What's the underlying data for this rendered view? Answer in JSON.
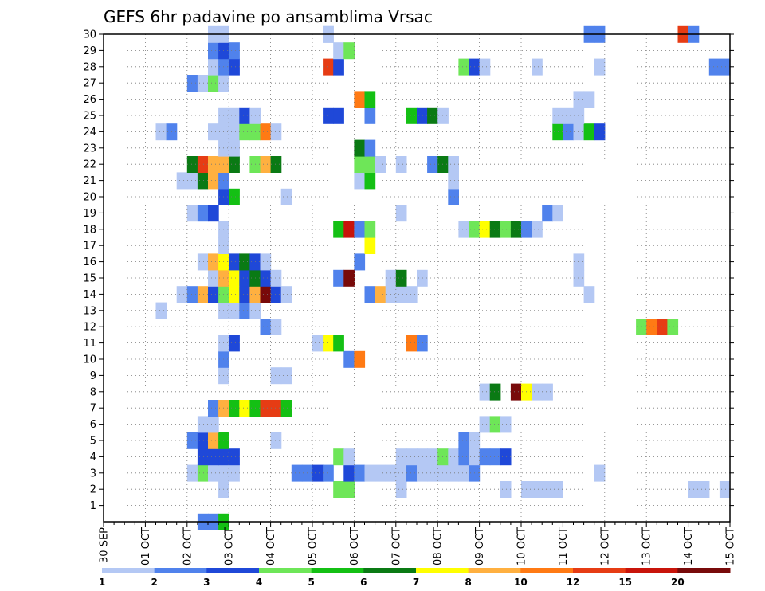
{
  "chart_data": {
    "type": "heatmap",
    "title": "GEFS 6hr padavine po ansamblima Vrsac",
    "xlabel": "",
    "ylabel": "",
    "x_tick_labels": [
      "30 SEP",
      "01 OCT",
      "02 OCT",
      "03 OCT",
      "04 OCT",
      "05 OCT",
      "06 OCT",
      "07 OCT",
      "08 OCT",
      "09 OCT",
      "10 OCT",
      "11 OCT",
      "12 OCT",
      "13 OCT",
      "14 OCT",
      "15 OCT"
    ],
    "xlim_days": [
      0,
      15
    ],
    "y_tick_labels": [
      "1",
      "2",
      "3",
      "4",
      "5",
      "6",
      "7",
      "8",
      "9",
      "10",
      "11",
      "12",
      "13",
      "14",
      "15",
      "16",
      "17",
      "18",
      "19",
      "20",
      "21",
      "22",
      "23",
      "24",
      "25",
      "26",
      "27",
      "28",
      "29",
      "30"
    ],
    "ylim": [
      0,
      30
    ],
    "grid": true,
    "legend_position": "bottom",
    "legend_ticks": [
      "1",
      "2",
      "3",
      "4",
      "5",
      "6",
      "7",
      "8",
      "10",
      "12",
      "15",
      "20"
    ],
    "colorbar": [
      {
        "lower": 1,
        "color": "#b4c8f4"
      },
      {
        "lower": 2,
        "color": "#5082ec"
      },
      {
        "lower": 3,
        "color": "#1f48d8"
      },
      {
        "lower": 4,
        "color": "#6ee658"
      },
      {
        "lower": 5,
        "color": "#14c014"
      },
      {
        "lower": 6,
        "color": "#0a7a14"
      },
      {
        "lower": 7,
        "color": "#ffff00"
      },
      {
        "lower": 8,
        "color": "#ffb040"
      },
      {
        "lower": 10,
        "color": "#ff7a14"
      },
      {
        "lower": 12,
        "color": "#e63c14"
      },
      {
        "lower": 15,
        "color": "#c8140a"
      },
      {
        "lower": 20,
        "color": "#780a0a"
      }
    ],
    "series": [
      {
        "member": 0,
        "values": [
          [
            9,
            2
          ],
          [
            10,
            2
          ],
          [
            11,
            5
          ]
        ]
      },
      {
        "member": 2,
        "values": [
          [
            11,
            1
          ],
          [
            22,
            4
          ],
          [
            23,
            4
          ],
          [
            28,
            1
          ],
          [
            38,
            1
          ],
          [
            40,
            1
          ],
          [
            41,
            1
          ],
          [
            42,
            1
          ],
          [
            43,
            1
          ],
          [
            56,
            1
          ],
          [
            57,
            1
          ],
          [
            59,
            1
          ],
          [
            76,
            1
          ],
          [
            77,
            1
          ],
          [
            78,
            1
          ],
          [
            79,
            1
          ],
          [
            94,
            1
          ],
          [
            97,
            1
          ]
        ]
      },
      {
        "member": 3,
        "values": [
          [
            8,
            1
          ],
          [
            9,
            4
          ],
          [
            10,
            1
          ],
          [
            11,
            1
          ],
          [
            12,
            1
          ],
          [
            18,
            2
          ],
          [
            19,
            2
          ],
          [
            20,
            3
          ],
          [
            21,
            2
          ],
          [
            23,
            3
          ],
          [
            24,
            2
          ],
          [
            25,
            1
          ],
          [
            26,
            1
          ],
          [
            27,
            1
          ],
          [
            28,
            1
          ],
          [
            29,
            2
          ],
          [
            30,
            1
          ],
          [
            31,
            1
          ],
          [
            32,
            1
          ],
          [
            33,
            1
          ],
          [
            34,
            1
          ],
          [
            35,
            2
          ],
          [
            47,
            1
          ]
        ]
      },
      {
        "member": 4,
        "values": [
          [
            9,
            3
          ],
          [
            10,
            3
          ],
          [
            11,
            3
          ],
          [
            12,
            3
          ],
          [
            22,
            4
          ],
          [
            23,
            1
          ],
          [
            28,
            1
          ],
          [
            29,
            1
          ],
          [
            30,
            1
          ],
          [
            31,
            1
          ],
          [
            32,
            4
          ],
          [
            33,
            1
          ],
          [
            34,
            2
          ],
          [
            35,
            1
          ],
          [
            36,
            2
          ],
          [
            37,
            2
          ],
          [
            38,
            3
          ]
        ]
      },
      {
        "member": 5,
        "values": [
          [
            8,
            2
          ],
          [
            9,
            3
          ],
          [
            10,
            8
          ],
          [
            11,
            5
          ],
          [
            16,
            1
          ],
          [
            34,
            2
          ],
          [
            35,
            1
          ]
        ]
      },
      {
        "member": 6,
        "values": [
          [
            9,
            1
          ],
          [
            10,
            1
          ],
          [
            36,
            1
          ],
          [
            37,
            4
          ],
          [
            38,
            1
          ]
        ]
      },
      {
        "member": 7,
        "values": [
          [
            10,
            2
          ],
          [
            11,
            8
          ],
          [
            12,
            5
          ],
          [
            13,
            7
          ],
          [
            14,
            5
          ],
          [
            15,
            12
          ],
          [
            16,
            12
          ],
          [
            17,
            5
          ]
        ]
      },
      {
        "member": 8,
        "values": [
          [
            36,
            1
          ],
          [
            37,
            6
          ],
          [
            39,
            20
          ],
          [
            40,
            7
          ],
          [
            41,
            1
          ],
          [
            42,
            1
          ]
        ]
      },
      {
        "member": 9,
        "values": [
          [
            11,
            1
          ],
          [
            16,
            1
          ],
          [
            17,
            1
          ]
        ]
      },
      {
        "member": 10,
        "values": [
          [
            11,
            2
          ],
          [
            23,
            2
          ],
          [
            24,
            10
          ]
        ]
      },
      {
        "member": 11,
        "values": [
          [
            11,
            1
          ],
          [
            12,
            3
          ],
          [
            20,
            1
          ],
          [
            21,
            7
          ],
          [
            22,
            5
          ],
          [
            29,
            10
          ],
          [
            30,
            2
          ]
        ]
      },
      {
        "member": 12,
        "values": [
          [
            15,
            2
          ],
          [
            16,
            1
          ],
          [
            51,
            4
          ],
          [
            52,
            10
          ],
          [
            53,
            12
          ],
          [
            54,
            4
          ]
        ]
      },
      {
        "member": 13,
        "values": [
          [
            5,
            1
          ],
          [
            11,
            1
          ],
          [
            12,
            1
          ],
          [
            13,
            2
          ],
          [
            14,
            1
          ]
        ]
      },
      {
        "member": 14,
        "values": [
          [
            7,
            1
          ],
          [
            8,
            2
          ],
          [
            9,
            8
          ],
          [
            10,
            3
          ],
          [
            11,
            4
          ],
          [
            12,
            7
          ],
          [
            13,
            3
          ],
          [
            14,
            8
          ],
          [
            15,
            20
          ],
          [
            16,
            3
          ],
          [
            17,
            1
          ],
          [
            25,
            2
          ],
          [
            26,
            8
          ],
          [
            27,
            1
          ],
          [
            28,
            1
          ],
          [
            29,
            1
          ],
          [
            46,
            1
          ]
        ]
      },
      {
        "member": 15,
        "values": [
          [
            10,
            1
          ],
          [
            11,
            8
          ],
          [
            12,
            7
          ],
          [
            13,
            3
          ],
          [
            14,
            6
          ],
          [
            15,
            3
          ],
          [
            16,
            1
          ],
          [
            22,
            2
          ],
          [
            23,
            20
          ],
          [
            27,
            1
          ],
          [
            28,
            6
          ],
          [
            30,
            1
          ],
          [
            45,
            1
          ]
        ]
      },
      {
        "member": 16,
        "values": [
          [
            9,
            1
          ],
          [
            10,
            8
          ],
          [
            11,
            7
          ],
          [
            12,
            3
          ],
          [
            13,
            6
          ],
          [
            14,
            3
          ],
          [
            15,
            1
          ],
          [
            24,
            2
          ],
          [
            45,
            1
          ]
        ]
      },
      {
        "member": 17,
        "values": [
          [
            11,
            1
          ],
          [
            25,
            7
          ]
        ]
      },
      {
        "member": 18,
        "values": [
          [
            11,
            1
          ],
          [
            22,
            5
          ],
          [
            23,
            15
          ],
          [
            24,
            2
          ],
          [
            25,
            4
          ],
          [
            34,
            1
          ],
          [
            35,
            4
          ],
          [
            36,
            7
          ],
          [
            37,
            6
          ],
          [
            38,
            4
          ],
          [
            39,
            6
          ],
          [
            40,
            2
          ],
          [
            41,
            1
          ]
        ]
      },
      {
        "member": 19,
        "values": [
          [
            8,
            1
          ],
          [
            9,
            2
          ],
          [
            10,
            3
          ],
          [
            28,
            1
          ],
          [
            42,
            2
          ],
          [
            43,
            1
          ]
        ]
      },
      {
        "member": 20,
        "values": [
          [
            11,
            3
          ],
          [
            12,
            5
          ],
          [
            17,
            1
          ],
          [
            33,
            2
          ]
        ]
      },
      {
        "member": 21,
        "values": [
          [
            7,
            1
          ],
          [
            8,
            1
          ],
          [
            9,
            6
          ],
          [
            10,
            8
          ],
          [
            11,
            2
          ],
          [
            24,
            1
          ],
          [
            25,
            5
          ],
          [
            33,
            1
          ]
        ]
      },
      {
        "member": 22,
        "values": [
          [
            8,
            6
          ],
          [
            9,
            12
          ],
          [
            10,
            8
          ],
          [
            11,
            8
          ],
          [
            12,
            6
          ],
          [
            14,
            4
          ],
          [
            15,
            8
          ],
          [
            16,
            6
          ],
          [
            24,
            4
          ],
          [
            25,
            4
          ],
          [
            26,
            1
          ],
          [
            28,
            1
          ],
          [
            31,
            2
          ],
          [
            32,
            6
          ],
          [
            33,
            1
          ]
        ]
      },
      {
        "member": 23,
        "values": [
          [
            11,
            1
          ],
          [
            12,
            1
          ],
          [
            24,
            6
          ],
          [
            25,
            2
          ]
        ]
      },
      {
        "member": 24,
        "values": [
          [
            5,
            1
          ],
          [
            6,
            2
          ],
          [
            10,
            1
          ],
          [
            11,
            1
          ],
          [
            12,
            1
          ],
          [
            13,
            4
          ],
          [
            14,
            4
          ],
          [
            15,
            10
          ],
          [
            16,
            1
          ],
          [
            43,
            5
          ],
          [
            44,
            2
          ],
          [
            45,
            1
          ],
          [
            46,
            5
          ],
          [
            47,
            3
          ]
        ]
      },
      {
        "member": 25,
        "values": [
          [
            11,
            1
          ],
          [
            12,
            1
          ],
          [
            13,
            3
          ],
          [
            14,
            1
          ],
          [
            21,
            3
          ],
          [
            22,
            3
          ],
          [
            25,
            2
          ],
          [
            29,
            5
          ],
          [
            30,
            3
          ],
          [
            31,
            6
          ],
          [
            32,
            1
          ],
          [
            43,
            1
          ],
          [
            44,
            1
          ],
          [
            45,
            1
          ]
        ]
      },
      {
        "member": 26,
        "values": [
          [
            24,
            10
          ],
          [
            25,
            5
          ],
          [
            45,
            1
          ],
          [
            46,
            1
          ]
        ]
      },
      {
        "member": 27,
        "values": [
          [
            8,
            2
          ],
          [
            9,
            1
          ],
          [
            10,
            4
          ],
          [
            11,
            1
          ]
        ]
      },
      {
        "member": 28,
        "values": [
          [
            10,
            1
          ],
          [
            11,
            2
          ],
          [
            12,
            3
          ],
          [
            21,
            12
          ],
          [
            22,
            3
          ],
          [
            34,
            4
          ],
          [
            35,
            3
          ],
          [
            36,
            1
          ],
          [
            41,
            1
          ],
          [
            47,
            1
          ],
          [
            58,
            2
          ],
          [
            59,
            2
          ]
        ]
      },
      {
        "member": 29,
        "values": [
          [
            10,
            2
          ],
          [
            11,
            3
          ],
          [
            12,
            2
          ],
          [
            22,
            1
          ],
          [
            23,
            4
          ]
        ]
      },
      {
        "member": 30,
        "values": [
          [
            10,
            1
          ],
          [
            11,
            1
          ],
          [
            21,
            1
          ],
          [
            21,
            1
          ],
          [
            46,
            2
          ],
          [
            47,
            2
          ],
          [
            55,
            12
          ],
          [
            56,
            2
          ]
        ]
      }
    ]
  }
}
